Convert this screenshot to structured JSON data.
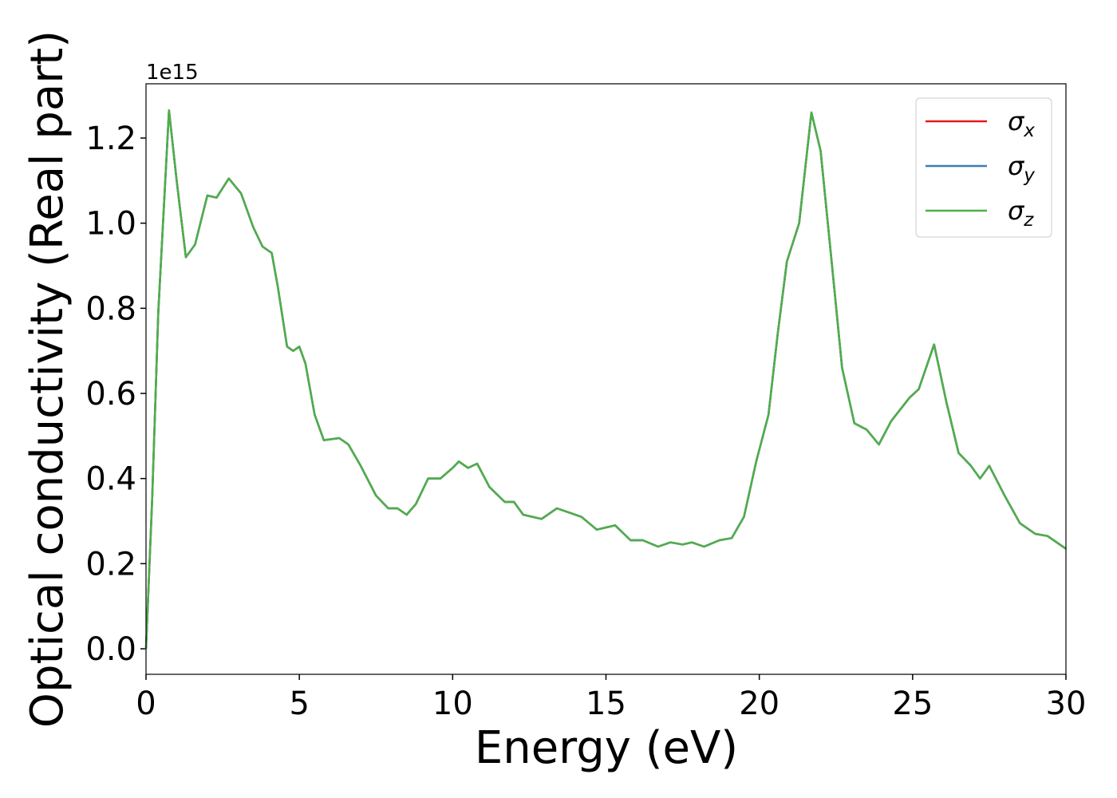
{
  "chart_data": {
    "type": "line",
    "xlabel": "Energy (eV)",
    "ylabel": "Optical conductivity (Real part)",
    "offset_label": "1e15",
    "x": [
      0,
      0.2,
      0.4,
      0.75,
      1.0,
      1.3,
      1.6,
      2.0,
      2.3,
      2.7,
      3.1,
      3.5,
      3.8,
      4.1,
      4.3,
      4.6,
      4.8,
      5.0,
      5.2,
      5.5,
      5.8,
      6.3,
      6.6,
      7.0,
      7.5,
      7.9,
      8.2,
      8.5,
      8.8,
      9.2,
      9.6,
      10.0,
      10.2,
      10.5,
      10.8,
      11.2,
      11.7,
      12.0,
      12.3,
      12.9,
      13.4,
      13.8,
      14.2,
      14.7,
      15.3,
      15.8,
      16.2,
      16.7,
      17.1,
      17.5,
      17.8,
      18.2,
      18.7,
      19.1,
      19.5,
      19.9,
      20.3,
      20.6,
      20.9,
      21.3,
      21.7,
      22.0,
      22.4,
      22.7,
      23.1,
      23.5,
      23.9,
      24.3,
      24.9,
      25.2,
      25.7,
      26.1,
      26.5,
      26.9,
      27.2,
      27.5,
      28.0,
      28.5,
      29.0,
      29.4,
      30.0
    ],
    "series": [
      {
        "name": "σx",
        "color": "#e41a1c",
        "values": [
          0.0,
          0.35,
          0.79,
          1.265,
          1.1,
          0.92,
          0.95,
          1.065,
          1.06,
          1.105,
          1.07,
          0.99,
          0.945,
          0.93,
          0.85,
          0.71,
          0.7,
          0.71,
          0.67,
          0.55,
          0.49,
          0.495,
          0.48,
          0.43,
          0.36,
          0.33,
          0.33,
          0.315,
          0.34,
          0.4,
          0.4,
          0.425,
          0.44,
          0.425,
          0.435,
          0.38,
          0.345,
          0.345,
          0.315,
          0.305,
          0.33,
          0.32,
          0.31,
          0.28,
          0.29,
          0.255,
          0.255,
          0.24,
          0.25,
          0.245,
          0.25,
          0.24,
          0.255,
          0.26,
          0.31,
          0.44,
          0.55,
          0.74,
          0.91,
          1.0,
          1.26,
          1.17,
          0.88,
          0.66,
          0.53,
          0.515,
          0.48,
          0.535,
          0.59,
          0.61,
          0.715,
          0.58,
          0.46,
          0.43,
          0.4,
          0.43,
          0.36,
          0.295,
          0.27,
          0.265,
          0.235
        ]
      },
      {
        "name": "σy",
        "color": "#377eb8",
        "values": [
          0.0,
          0.35,
          0.79,
          1.265,
          1.1,
          0.92,
          0.95,
          1.065,
          1.06,
          1.105,
          1.07,
          0.99,
          0.945,
          0.93,
          0.85,
          0.71,
          0.7,
          0.71,
          0.67,
          0.55,
          0.49,
          0.495,
          0.48,
          0.43,
          0.36,
          0.33,
          0.33,
          0.315,
          0.34,
          0.4,
          0.4,
          0.425,
          0.44,
          0.425,
          0.435,
          0.38,
          0.345,
          0.345,
          0.315,
          0.305,
          0.33,
          0.32,
          0.31,
          0.28,
          0.29,
          0.255,
          0.255,
          0.24,
          0.25,
          0.245,
          0.25,
          0.24,
          0.255,
          0.26,
          0.31,
          0.44,
          0.55,
          0.74,
          0.91,
          1.0,
          1.26,
          1.17,
          0.88,
          0.66,
          0.53,
          0.515,
          0.48,
          0.535,
          0.59,
          0.61,
          0.715,
          0.58,
          0.46,
          0.43,
          0.4,
          0.43,
          0.36,
          0.295,
          0.27,
          0.265,
          0.235
        ]
      },
      {
        "name": "σz",
        "color": "#4daf4a",
        "values": [
          0.0,
          0.35,
          0.79,
          1.265,
          1.1,
          0.92,
          0.95,
          1.065,
          1.06,
          1.105,
          1.07,
          0.99,
          0.945,
          0.93,
          0.85,
          0.71,
          0.7,
          0.71,
          0.67,
          0.55,
          0.49,
          0.495,
          0.48,
          0.43,
          0.36,
          0.33,
          0.33,
          0.315,
          0.34,
          0.4,
          0.4,
          0.425,
          0.44,
          0.425,
          0.435,
          0.38,
          0.345,
          0.345,
          0.315,
          0.305,
          0.33,
          0.32,
          0.31,
          0.28,
          0.29,
          0.255,
          0.255,
          0.24,
          0.25,
          0.245,
          0.25,
          0.24,
          0.255,
          0.26,
          0.31,
          0.44,
          0.55,
          0.74,
          0.91,
          1.0,
          1.26,
          1.17,
          0.88,
          0.66,
          0.53,
          0.515,
          0.48,
          0.535,
          0.59,
          0.61,
          0.715,
          0.58,
          0.46,
          0.43,
          0.4,
          0.43,
          0.36,
          0.295,
          0.27,
          0.265,
          0.235
        ]
      }
    ],
    "xlim": [
      0,
      30
    ],
    "xticks": [
      0,
      5,
      10,
      15,
      20,
      25,
      30
    ],
    "ylim": [
      -0.06,
      1.3275
    ],
    "yticks": [
      {
        "value": 0,
        "label": "0.0"
      },
      0.2,
      0.4,
      0.6,
      0.8,
      {
        "value": 1,
        "label": "1.0"
      },
      1.2
    ],
    "legend": "upper right",
    "grid": false
  }
}
